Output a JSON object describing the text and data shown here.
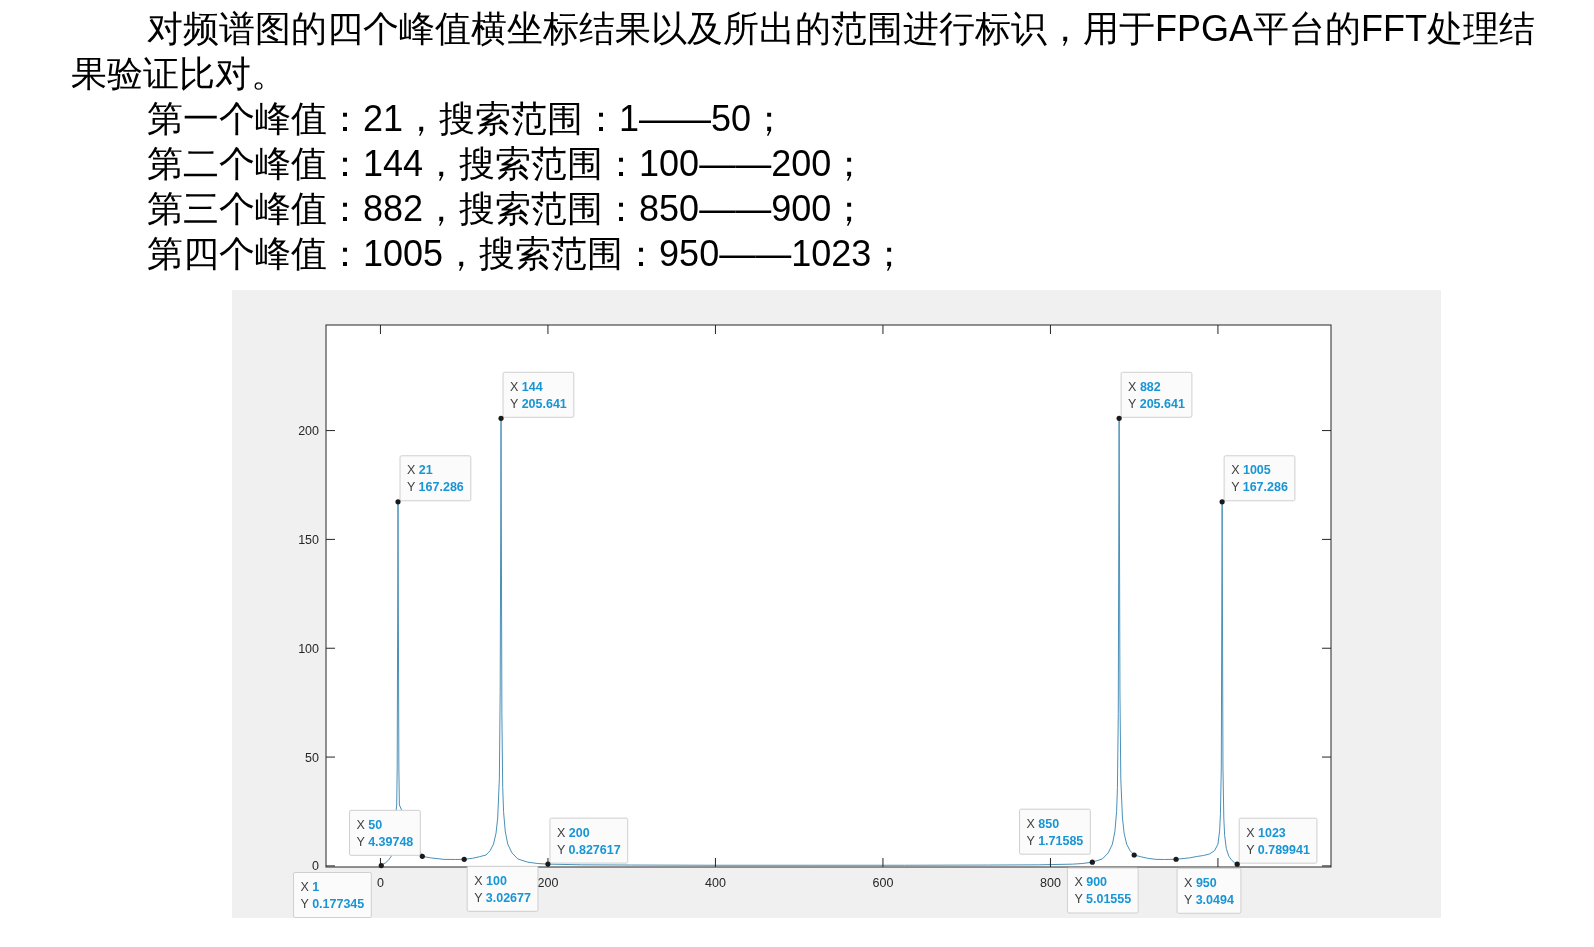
{
  "chart_data": {
    "type": "line",
    "title": "对频谱图的四个峰值横坐标结果以及所出的范围进行标识，用于FPGA平台的FFT处理结果验证比对。",
    "annotations": [
      "第一个峰值：21，搜索范围：1——50；",
      "第二个峰值：144，搜索范围：100——200；",
      "第三个峰值：882，搜索范围：850——900；",
      "第四个峰值：1005，搜索范围：950——1023；",
      {
        "text": "X 1\nY 0.177345",
        "x": 1,
        "y": 0.177345
      },
      {
        "text": "X 21\nY 167.286",
        "x": 21,
        "y": 167.286
      },
      {
        "text": "X 50\nY 4.39748",
        "x": 50,
        "y": 4.39748
      },
      {
        "text": "X 100\nY 3.02677",
        "x": 100,
        "y": 3.02677
      },
      {
        "text": "X 144\nY 205.641",
        "x": 144,
        "y": 205.641
      },
      {
        "text": "X 200\nY 0.827617",
        "x": 200,
        "y": 0.827617
      },
      {
        "text": "X 850\nY 1.71585",
        "x": 850,
        "y": 1.71585
      },
      {
        "text": "X 882\nY 205.641",
        "x": 882,
        "y": 205.641
      },
      {
        "text": "X 900\nY 5.01555",
        "x": 900,
        "y": 5.01555
      },
      {
        "text": "X 950\nY 3.0494",
        "x": 950,
        "y": 3.0494
      },
      {
        "text": "X 1005\nY 167.286",
        "x": 1005,
        "y": 167.286
      },
      {
        "text": "X 1023\nY 0.789941",
        "x": 1023,
        "y": 0.789941
      }
    ],
    "x": [
      1,
      3,
      6,
      10,
      13,
      19.4,
      20,
      21,
      22,
      22.6,
      50,
      60,
      76,
      90,
      100,
      110,
      118,
      126,
      131,
      135,
      138,
      140,
      142,
      143,
      144,
      145,
      146,
      147,
      149,
      152,
      157,
      164,
      176,
      188,
      200,
      240,
      300,
      400,
      513,
      626,
      726,
      786,
      826,
      838,
      850,
      862,
      869,
      874,
      877,
      879,
      880,
      881,
      882,
      883,
      884,
      886,
      888,
      891,
      895,
      900,
      908,
      916,
      926,
      936,
      950,
      966,
      976,
      983,
      990,
      996,
      1000,
      1002,
      1003,
      1004,
      1005,
      1006,
      1007,
      1008,
      1010,
      1013,
      1016,
      1020,
      1023
    ],
    "series": [
      {
        "color": "#4a90b8",
        "values": [
          0.177345,
          0.8,
          1.4,
          2.8,
          4.5,
          28,
          45,
          167.286,
          45,
          28,
          4.39748,
          3.7,
          3.0,
          2.95,
          3.02677,
          3.5,
          4.2,
          5.0,
          7,
          10,
          15,
          22,
          40,
          80,
          205.641,
          70,
          36,
          25,
          16,
          10,
          6,
          3.2,
          1.7,
          1.1,
          0.827617,
          0.5,
          0.4,
          0.3,
          0.3,
          0.3,
          0.4,
          0.5,
          0.8,
          1.1,
          1.71585,
          3.2,
          6,
          10,
          16,
          25,
          36,
          70,
          205.641,
          80,
          40,
          22,
          15,
          10,
          7,
          5.01555,
          4.2,
          3.5,
          3.0,
          2.95,
          3.0494,
          3.7,
          4.4,
          4.8,
          5.5,
          7,
          10,
          16,
          24,
          45,
          167.286,
          45,
          22,
          14,
          8,
          4.5,
          2.8,
          1.4,
          0.789941
        ]
      }
    ],
    "xlim": [
      -65,
      1135
    ],
    "ylim": [
      -0.5,
      248.5
    ],
    "xticks": [
      0,
      200,
      400,
      600,
      800,
      {
        "value": 1000,
        "label": null
      }
    ],
    "yticks": [
      0,
      50,
      100,
      150,
      200
    ]
  }
}
